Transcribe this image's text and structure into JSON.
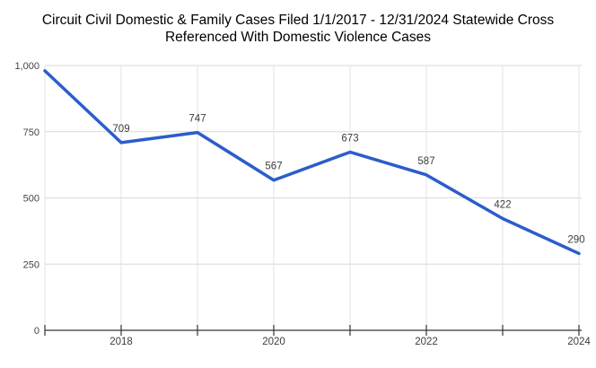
{
  "header": {
    "title_line1": "Circuit Civil Domestic & Family Cases Filed 1/1/2017 - 12/31/2024 Statewide Cross",
    "title_line2": "Referenced With Domestic Violence Cases"
  },
  "chart_data": {
    "type": "line",
    "title": "Circuit Civil Domestic & Family Cases Filed 1/1/2017 - 12/31/2024 Statewide Cross Referenced With Domestic Violence Cases",
    "x": [
      "2017",
      "2018",
      "2019",
      "2020",
      "2021",
      "2022",
      "2023",
      "2024"
    ],
    "values": [
      980,
      709,
      747,
      567,
      673,
      587,
      422,
      290
    ],
    "point_labels": [
      "",
      "709",
      "747",
      "567",
      "673",
      "587",
      "422",
      "290"
    ],
    "x_axis_tick_labels": [
      "2018",
      "2020",
      "2022",
      "2024"
    ],
    "y_axis_tick_labels": [
      "0",
      "250",
      "500",
      "750",
      "1,000"
    ],
    "ylim": [
      0,
      1000
    ],
    "xlabel": "",
    "ylabel": "",
    "grid": true,
    "legend": "none",
    "line_color": "#2b5dcb",
    "line_width": 3.5,
    "annotation_color": "#3d3d3d",
    "axis_color": "#333333",
    "h_gridline_color": "#d9d9d9",
    "v_gridline_color": "#e3e3e3",
    "background_color": "#ffffff"
  }
}
